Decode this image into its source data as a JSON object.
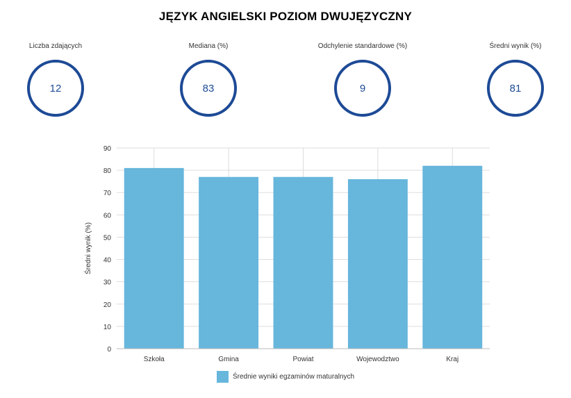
{
  "title": "JĘZYK ANGIELSKI POZIOM DWUJĘZYCZNY",
  "stats": [
    {
      "label": "Liczba zdających",
      "value": "12"
    },
    {
      "label": "Mediana (%)",
      "value": "83"
    },
    {
      "label": "Odchylenie standardowe (%)",
      "value": "9"
    },
    {
      "label": "Średni wynik (%)",
      "value": "81"
    }
  ],
  "colors": {
    "ring": "#1d4a96",
    "bar": "#67b6dc",
    "grid": "#dddddd"
  },
  "chart_data": {
    "type": "bar",
    "categories": [
      "Szkoła",
      "Gmina",
      "Powiat",
      "Wojewodztwo",
      "Kraj"
    ],
    "series": [
      {
        "name": "Średnie wyniki egzaminów maturalnych",
        "values": [
          81,
          77,
          77,
          76,
          82
        ]
      }
    ],
    "ylabel": "Średni wynik (%)",
    "xlabel": "",
    "ylim": [
      0,
      90
    ],
    "yticks": [
      0,
      10,
      20,
      30,
      40,
      50,
      60,
      70,
      80,
      90
    ],
    "grid": true,
    "legend": "bottom"
  }
}
